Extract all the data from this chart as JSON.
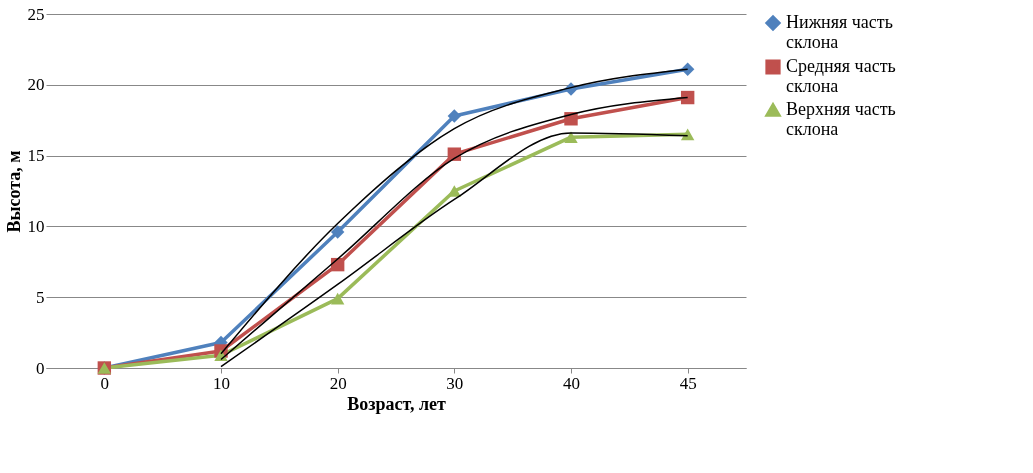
{
  "chart_data": {
    "type": "line",
    "xlabel": "Возраст, лет",
    "ylabel": "Высота, м",
    "categories": [
      "0",
      "10",
      "20",
      "30",
      "40",
      "45"
    ],
    "ylim": [
      0,
      25
    ],
    "yticks": [
      0,
      5,
      10,
      15,
      20,
      25
    ],
    "grid": "y",
    "legend": "right",
    "line_style": "solid",
    "series": [
      {
        "name": "Нижняя часть склона",
        "color": "#4f81bd",
        "marker": "diamond",
        "values": [
          0,
          1.8,
          9.6,
          17.8,
          19.7,
          21.1
        ]
      },
      {
        "name": "Средняя часть склона",
        "color": "#c0504d",
        "marker": "square",
        "values": [
          0,
          1.2,
          7.3,
          15.1,
          17.6,
          19.1
        ]
      },
      {
        "name": "Верхняя часть склона",
        "color": "#9bbb59",
        "marker": "triangle",
        "values": [
          0,
          0.9,
          4.9,
          12.5,
          16.3,
          16.5
        ]
      },
      {
        "type": "line",
        "color": "#000000",
        "marker": "none",
        "x": [
          "10",
          "20",
          "30",
          "40",
          "45"
        ],
        "values": [
          1.0,
          10.2,
          16.9,
          19.8,
          21.1
        ]
      },
      {
        "type": "line",
        "color": "#000000",
        "marker": "none",
        "x": [
          "10",
          "20",
          "30",
          "40",
          "45"
        ],
        "values": [
          0.6,
          7.7,
          14.8,
          17.9,
          19.1
        ]
      },
      {
        "type": "line",
        "color": "#000000",
        "marker": "none",
        "x": [
          "10",
          "20",
          "30",
          "40",
          "45"
        ],
        "values": [
          0.1,
          5.9,
          11.9,
          16.6,
          16.4
        ]
      }
    ]
  }
}
